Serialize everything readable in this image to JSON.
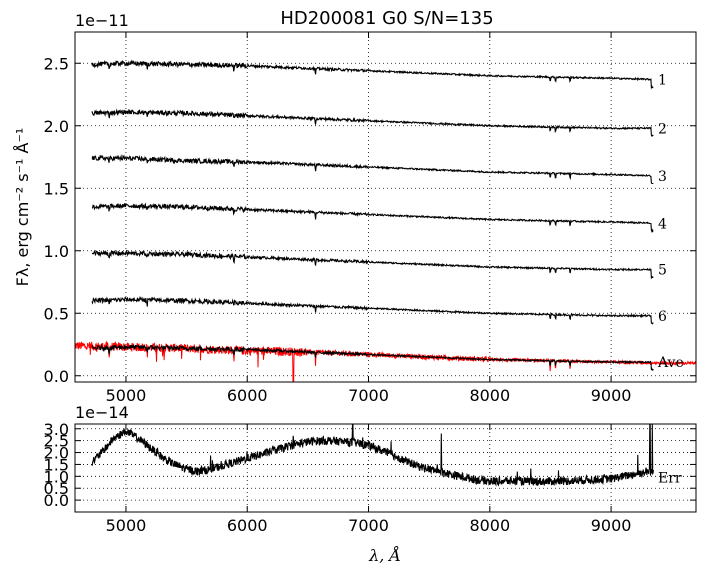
{
  "chart_data": [
    {
      "type": "line",
      "title": "HD200081  G0  S/N=135",
      "ylabel": "Fλ, erg cm⁻² s⁻¹ Å⁻¹",
      "xlabel": "",
      "offset_text": "1e−11",
      "xlim": [
        4580,
        9700
      ],
      "ylim": [
        -0.05,
        2.75
      ],
      "x_ticks": [
        5000,
        6000,
        7000,
        8000,
        9000
      ],
      "y_ticks": [
        0.0,
        0.5,
        1.0,
        1.5,
        2.0,
        2.5
      ],
      "y_tick_labels": [
        "0.0",
        "0.5",
        "1.0",
        "1.5",
        "2.0",
        "2.5"
      ],
      "x_tick_labels": [
        "5000",
        "6000",
        "7000",
        "8000",
        "9000"
      ],
      "grid": true,
      "x": [
        4720,
        5000,
        5500,
        6000,
        6500,
        7000,
        7500,
        8000,
        8500,
        9000,
        9350
      ],
      "series": [
        {
          "name": "1",
          "color": "#000000",
          "values": [
            2.49,
            2.5,
            2.49,
            2.48,
            2.46,
            2.44,
            2.42,
            2.4,
            2.39,
            2.38,
            2.37
          ]
        },
        {
          "name": "2",
          "color": "#000000",
          "values": [
            2.1,
            2.11,
            2.1,
            2.08,
            2.06,
            2.04,
            2.02,
            2.0,
            1.99,
            1.98,
            1.98
          ]
        },
        {
          "name": "3",
          "color": "#000000",
          "values": [
            1.74,
            1.74,
            1.72,
            1.71,
            1.69,
            1.67,
            1.65,
            1.63,
            1.62,
            1.61,
            1.6
          ]
        },
        {
          "name": "4",
          "color": "#000000",
          "values": [
            1.35,
            1.36,
            1.35,
            1.33,
            1.31,
            1.29,
            1.27,
            1.25,
            1.24,
            1.23,
            1.22
          ]
        },
        {
          "name": "5",
          "color": "#000000",
          "values": [
            0.98,
            0.98,
            0.97,
            0.95,
            0.93,
            0.91,
            0.89,
            0.87,
            0.86,
            0.85,
            0.85
          ]
        },
        {
          "name": "6",
          "color": "#000000",
          "values": [
            0.6,
            0.61,
            0.6,
            0.58,
            0.56,
            0.54,
            0.52,
            0.5,
            0.49,
            0.48,
            0.48
          ]
        },
        {
          "name": "Ave",
          "color": "#000000",
          "values": [
            0.22,
            0.23,
            0.22,
            0.21,
            0.19,
            0.17,
            0.15,
            0.13,
            0.12,
            0.11,
            0.11
          ]
        }
      ],
      "red_series": {
        "color": "#ff0000",
        "x": [
          4580,
          5000,
          5500,
          6000,
          6500,
          7000,
          7500,
          8000,
          8500,
          9000,
          9500,
          9700
        ],
        "values": [
          0.24,
          0.23,
          0.22,
          0.2,
          0.19,
          0.17,
          0.15,
          0.13,
          0.12,
          0.11,
          0.1,
          0.1
        ]
      },
      "absorption_lines": [
        4861,
        5175,
        5890,
        6563,
        8498,
        8542,
        8662
      ],
      "annotations": [
        "1",
        "2",
        "3",
        "4",
        "5",
        "6",
        "Ave"
      ]
    },
    {
      "type": "line",
      "offset_text": "1e−14",
      "xlabel": "λ, Å",
      "xlim": [
        4580,
        9700
      ],
      "ylim": [
        -0.5,
        3.2
      ],
      "x_ticks": [
        5000,
        6000,
        7000,
        8000,
        9000
      ],
      "x_tick_labels": [
        "5000",
        "6000",
        "7000",
        "8000",
        "9000"
      ],
      "y_ticks": [
        0.0,
        0.5,
        1.0,
        1.5,
        2.0,
        2.5,
        3.0
      ],
      "y_tick_labels": [
        "0.0",
        "0.5",
        "1.0",
        "1.5",
        "2.0",
        "2.5",
        "3.0"
      ],
      "grid": true,
      "series": [
        {
          "name": "Err",
          "color": "#000000",
          "x": [
            4720,
            4800,
            4900,
            5000,
            5100,
            5200,
            5300,
            5400,
            5500,
            5600,
            5700,
            5800,
            5900,
            6000,
            6100,
            6200,
            6300,
            6400,
            6500,
            6600,
            6700,
            6800,
            6900,
            7000,
            7100,
            7200,
            7300,
            7400,
            7500,
            7600,
            7700,
            7800,
            7900,
            8000,
            8200,
            8400,
            8600,
            8800,
            9000,
            9100,
            9200,
            9300,
            9350
          ],
          "values": [
            1.6,
            2.0,
            2.6,
            2.9,
            2.6,
            2.2,
            1.8,
            1.5,
            1.3,
            1.2,
            1.3,
            1.45,
            1.6,
            1.75,
            1.9,
            2.05,
            2.2,
            2.35,
            2.45,
            2.5,
            2.5,
            2.45,
            2.4,
            2.3,
            2.1,
            1.9,
            1.65,
            1.45,
            1.3,
            1.2,
            1.05,
            0.95,
            0.85,
            0.8,
            0.8,
            0.78,
            0.8,
            0.85,
            0.9,
            1.0,
            1.1,
            1.2,
            1.2
          ]
        }
      ],
      "spikes": [
        [
          6870,
          3.2
        ],
        [
          7600,
          2.8
        ],
        [
          9320,
          3.2
        ],
        [
          9340,
          3.2
        ],
        [
          9220,
          1.9
        ]
      ],
      "annotations": [
        "Err"
      ]
    }
  ]
}
